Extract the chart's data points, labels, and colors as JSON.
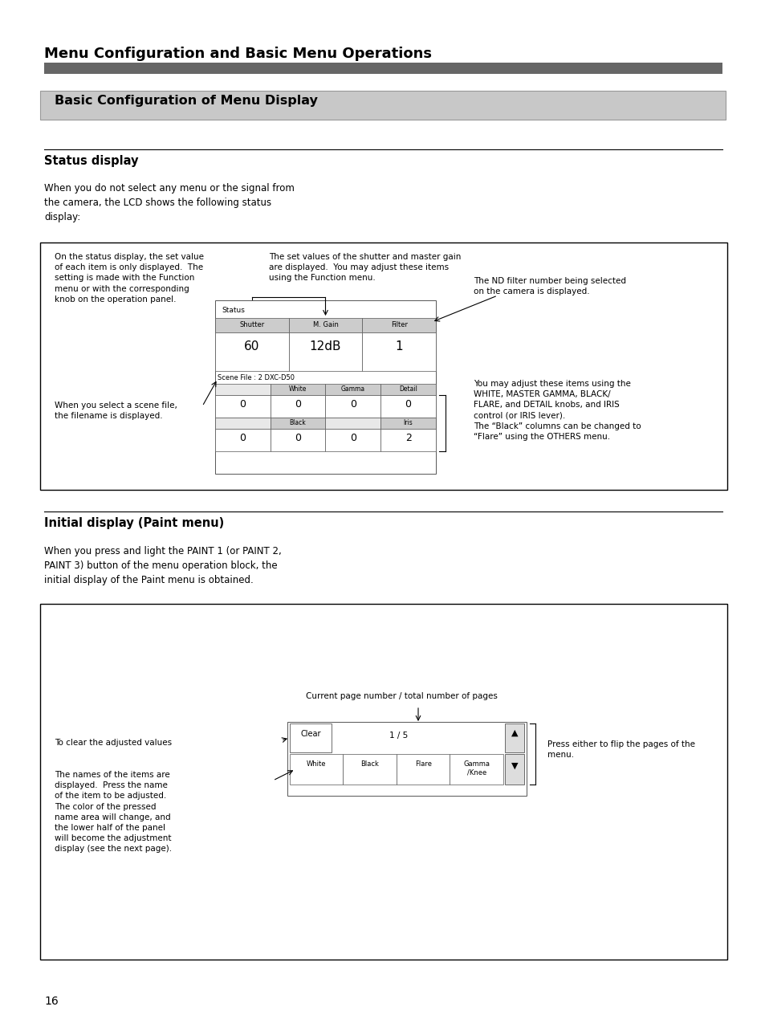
{
  "page_bg": "#ffffff",
  "page_width": 9.54,
  "page_height": 12.74,
  "main_title": "Menu Configuration and Basic Menu Operations",
  "main_title_fontsize": 13,
  "rule_bar_color": "#666666",
  "section1_bg": "#c8c8c8",
  "section1_title": "Basic Configuration of Menu Display",
  "section1_title_fontsize": 11.5,
  "status_title": "Status display",
  "status_title_fontsize": 10.5,
  "status_body_text": "When you do not select any menu or the signal from\nthe camera, the LCD shows the following status\ndisplay:",
  "annot1_text": "On the status display, the set value\nof each item is only displayed.  The\nsetting is made with the Function\nmenu or with the corresponding\nknob on the operation panel.",
  "annot2_text": "The set values of the shutter and master gain\nare displayed.  You may adjust these items\nusing the Function menu.",
  "annot3_text": "The ND filter number being selected\non the camera is displayed.",
  "annot4_text": "When you select a scene file,\nthe filename is displayed.",
  "annot5_text": "You may adjust these items using the\nWHITE, MASTER GAMMA, BLACK/\nFLARE, and DETAIL knobs, and IRIS\ncontrol (or IRIS lever).\nThe “Black” columns can be changed to\n“Flare” using the OTHERS menu.",
  "initial_title": "Initial display (Paint menu)",
  "initial_title_fontsize": 10.5,
  "initial_body_text": "When you press and light the PAINT 1 (or PAINT 2,\nPAINT 3) button of the menu operation block, the\ninitial display of the Paint menu is obtained.",
  "annot6_text": "Current page number / total number of pages",
  "annot7_text": "To clear the adjusted values",
  "annot8_text": "Press either to flip the pages of the\nmenu.",
  "annot9_text": "The names of the items are\ndisplayed.  Press the name\nof the item to be adjusted.\nThe color of the pressed\nname area will change, and\nthe lower half of the panel\nwill become the adjustment\ndisplay (see the next page).",
  "page_number": "16",
  "page_number_fontsize": 10,
  "font_small": 7.5,
  "font_body": 8.5
}
